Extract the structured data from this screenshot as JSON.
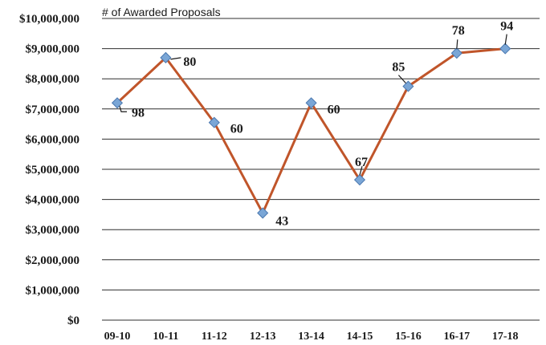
{
  "chart_data": {
    "type": "line",
    "title": "# of Awarded Proposals",
    "categories": [
      "09-10",
      "10-11",
      "11-12",
      "12-13",
      "13-14",
      "14-15",
      "15-16",
      "16-17",
      "17-18"
    ],
    "series": [
      {
        "values": [
          7200000,
          8700000,
          6550000,
          3550000,
          7200000,
          4650000,
          7750000,
          8850000,
          9000000
        ],
        "labels": [
          "98",
          "80",
          "60",
          "43",
          "60",
          "67",
          "85",
          "78",
          "94"
        ]
      }
    ],
    "y_ticks": [
      "$0",
      "$1,000,000",
      "$2,000,000",
      "$3,000,000",
      "$4,000,000",
      "$5,000,000",
      "$6,000,000",
      "$7,000,000",
      "$8,000,000",
      "$9,000,000",
      "$10,000,000"
    ],
    "ylim": [
      0,
      10000000
    ],
    "grid": true,
    "colors": {
      "line": "#c0552a",
      "marker": "#7aa6d6",
      "marker_edge": "#4a78b0",
      "grid": "#2f2f2f"
    }
  }
}
